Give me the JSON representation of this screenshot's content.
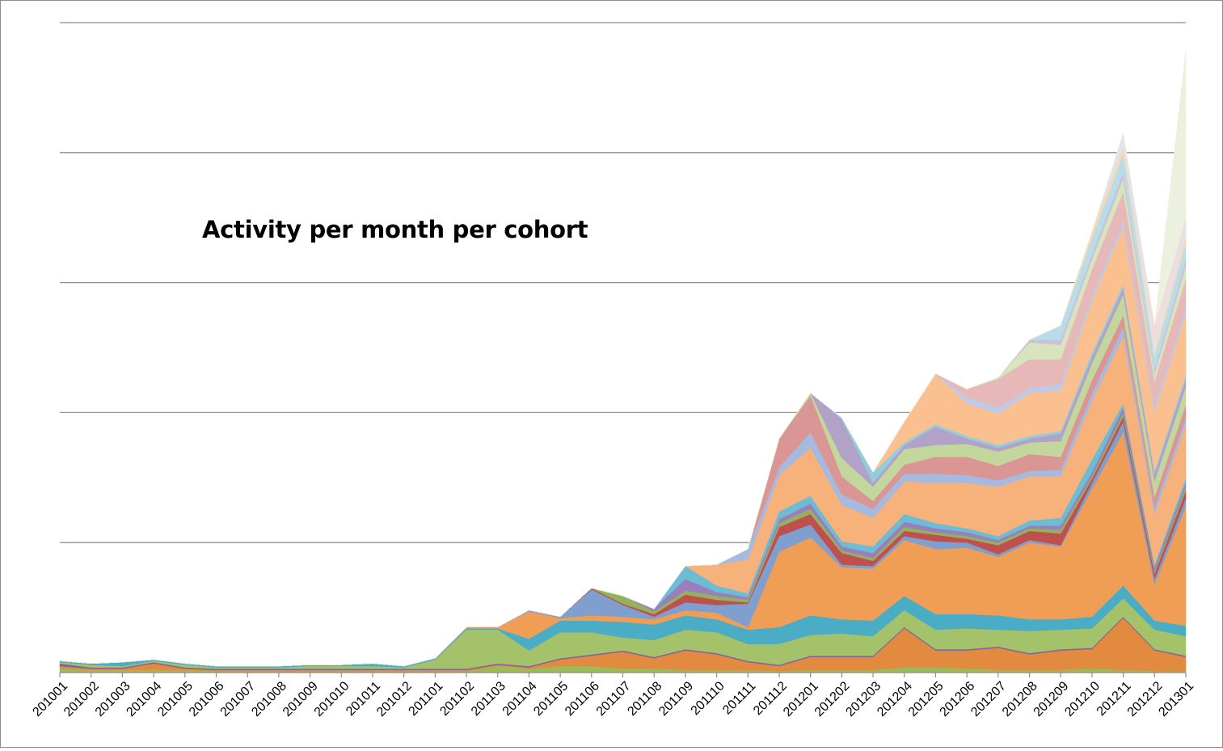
{
  "chart_data": {
    "type": "area",
    "stacked": true,
    "title": "Activity per month per cohort",
    "xlabel": "",
    "ylabel": "",
    "grid": true,
    "legend": "none",
    "y_tick_labels_shown": false,
    "ylim": [
      0,
      5
    ],
    "categories": [
      "201001",
      "201002",
      "201003",
      "201004",
      "201005",
      "201006",
      "201007",
      "201008",
      "201009",
      "201010",
      "201011",
      "201012",
      "201101",
      "201102",
      "201103",
      "201104",
      "201105",
      "201106",
      "201107",
      "201108",
      "201109",
      "201110",
      "201111",
      "201112",
      "201201",
      "201202",
      "201203",
      "201204",
      "201205",
      "201206",
      "201207",
      "201208",
      "201209",
      "201210",
      "201211",
      "201212",
      "201301"
    ],
    "series": [
      {
        "color": "#9bbb59",
        "values": [
          0.03,
          0.02,
          0.02,
          0.02,
          0.02,
          0.01,
          0.01,
          0.01,
          0.01,
          0.01,
          0.01,
          0.01,
          0.01,
          0.01,
          0.05,
          0.03,
          0.05,
          0.05,
          0.03,
          0.03,
          0.02,
          0.02,
          0.02,
          0.01,
          0.02,
          0.02,
          0.02,
          0.04,
          0.04,
          0.03,
          0.02,
          0.02,
          0.02,
          0.03,
          0.02,
          0.01,
          0.01
        ]
      },
      {
        "color": "#e28b40",
        "values": [
          0.02,
          0.01,
          0.01,
          0.05,
          0.01,
          0.01,
          0.01,
          0.01,
          0.01,
          0.01,
          0.01,
          0.01,
          0.01,
          0.01,
          0.01,
          0.01,
          0.05,
          0.08,
          0.13,
          0.08,
          0.15,
          0.12,
          0.06,
          0.04,
          0.1,
          0.1,
          0.1,
          0.3,
          0.13,
          0.14,
          0.17,
          0.12,
          0.15,
          0.15,
          0.4,
          0.16,
          0.11
        ]
      },
      {
        "color": "#8064a2",
        "values": [
          0.02,
          0.01,
          0.01,
          0.01,
          0.01,
          0.01,
          0.01,
          0.01,
          0.01,
          0.01,
          0.01,
          0.01,
          0.01,
          0.01,
          0.01,
          0.01,
          0.01,
          0.01,
          0.01,
          0.01,
          0.01,
          0.01,
          0.01,
          0.01,
          0.01,
          0.01,
          0.01,
          0.01,
          0.01,
          0.01,
          0.01,
          0.01,
          0.01,
          0.01,
          0.01,
          0.01,
          0.01
        ]
      },
      {
        "color": "#a4c26a",
        "values": [
          0.01,
          0.02,
          0.01,
          0.01,
          0.02,
          0.01,
          0.01,
          0.01,
          0.02,
          0.02,
          0.02,
          0.01,
          0.07,
          0.3,
          0.26,
          0.12,
          0.2,
          0.17,
          0.1,
          0.13,
          0.15,
          0.16,
          0.13,
          0.16,
          0.16,
          0.17,
          0.15,
          0.13,
          0.15,
          0.16,
          0.13,
          0.17,
          0.15,
          0.15,
          0.14,
          0.15,
          0.15
        ]
      },
      {
        "color": "#4bacc6",
        "values": [
          0.01,
          0.01,
          0.03,
          0.01,
          0.01,
          0.01,
          0.01,
          0.01,
          0.01,
          0.01,
          0.02,
          0.01,
          0.01,
          0.01,
          0.01,
          0.09,
          0.09,
          0.09,
          0.12,
          0.12,
          0.11,
          0.1,
          0.11,
          0.13,
          0.15,
          0.11,
          0.12,
          0.11,
          0.12,
          0.11,
          0.11,
          0.09,
          0.08,
          0.09,
          0.1,
          0.07,
          0.08
        ]
      },
      {
        "color": "#f09e56",
        "values": [
          0,
          0,
          0,
          0,
          0,
          0,
          0,
          0,
          0,
          0,
          0,
          0,
          0,
          0.01,
          0.01,
          0.21,
          0.02,
          0.04,
          0.04,
          0.04,
          0.04,
          0.05,
          0.02,
          0.58,
          0.6,
          0.4,
          0.4,
          0.43,
          0.5,
          0.51,
          0.45,
          0.59,
          0.56,
          0.98,
          1.18,
          0.28,
          0.92
        ]
      },
      {
        "color": "#7f9fcf",
        "values": [
          0,
          0,
          0,
          0,
          0,
          0,
          0,
          0,
          0,
          0,
          0,
          0,
          0,
          0,
          0,
          0.01,
          0.01,
          0.2,
          0.09,
          0.02,
          0.06,
          0.06,
          0.18,
          0.12,
          0.1,
          0.02,
          0.02,
          0.03,
          0.06,
          0.04,
          0.02,
          0.02,
          0.01,
          0.05,
          0.08,
          0.04,
          0.06
        ]
      },
      {
        "color": "#c0504d",
        "values": [
          0,
          0,
          0,
          0,
          0,
          0,
          0,
          0,
          0,
          0,
          0,
          0,
          0,
          0,
          0,
          0,
          0,
          0.01,
          0.01,
          0.02,
          0.06,
          0.04,
          0.01,
          0.07,
          0.08,
          0.09,
          0.04,
          0.04,
          0.05,
          0.03,
          0.07,
          0.07,
          0.09,
          0.03,
          0.04,
          0.04,
          0.06
        ]
      },
      {
        "color": "#93b25c",
        "values": [
          0,
          0,
          0,
          0,
          0,
          0,
          0,
          0,
          0,
          0,
          0,
          0,
          0,
          0,
          0,
          0,
          0,
          0,
          0.06,
          0.02,
          0.03,
          0.03,
          0.02,
          0.03,
          0.04,
          0.02,
          0.02,
          0.03,
          0.02,
          0.02,
          0.02,
          0.02,
          0.03,
          0.02,
          0.03,
          0.02,
          0.03
        ]
      },
      {
        "color": "#9b7fbc",
        "values": [
          0,
          0,
          0,
          0,
          0,
          0,
          0,
          0,
          0,
          0,
          0,
          0,
          0,
          0,
          0,
          0,
          0,
          0,
          0,
          0.02,
          0.09,
          0.03,
          0.02,
          0.03,
          0.04,
          0.03,
          0.04,
          0.04,
          0.03,
          0.03,
          0.02,
          0.02,
          0.03,
          0.03,
          0.04,
          0.03,
          0.03
        ]
      },
      {
        "color": "#6cbcd4",
        "values": [
          0,
          0,
          0,
          0,
          0,
          0,
          0,
          0,
          0,
          0,
          0,
          0,
          0,
          0,
          0,
          0,
          0,
          0,
          0,
          0,
          0.1,
          0.05,
          0.03,
          0.06,
          0.06,
          0.04,
          0.05,
          0.06,
          0.04,
          0.03,
          0.03,
          0.04,
          0.06,
          0.1,
          0.03,
          0.02,
          0.04
        ]
      },
      {
        "color": "#f7b27c",
        "values": [
          0,
          0,
          0,
          0,
          0,
          0,
          0,
          0,
          0,
          0,
          0,
          0,
          0,
          0,
          0,
          0,
          0,
          0,
          0,
          0,
          0,
          0.16,
          0.26,
          0.28,
          0.37,
          0.28,
          0.22,
          0.25,
          0.31,
          0.35,
          0.38,
          0.34,
          0.32,
          0.45,
          0.52,
          0.39,
          0.41
        ]
      },
      {
        "color": "#a6b9df",
        "values": [
          0,
          0,
          0,
          0,
          0,
          0,
          0,
          0,
          0,
          0,
          0,
          0,
          0,
          0,
          0,
          0,
          0,
          0,
          0,
          0,
          0,
          0,
          0.08,
          0.06,
          0.12,
          0.08,
          0.07,
          0.06,
          0.07,
          0.06,
          0.05,
          0.04,
          0.05,
          0.06,
          0.07,
          0.05,
          0.05
        ]
      },
      {
        "color": "#d99694",
        "values": [
          0,
          0,
          0,
          0,
          0,
          0,
          0,
          0,
          0,
          0,
          0,
          0,
          0,
          0,
          0,
          0,
          0,
          0,
          0,
          0,
          0,
          0,
          0,
          0.22,
          0.28,
          0.14,
          0.06,
          0.07,
          0.13,
          0.14,
          0.11,
          0.13,
          0.1,
          0.1,
          0.09,
          0.08,
          0.1
        ]
      },
      {
        "color": "#c3d69b",
        "values": [
          0,
          0,
          0,
          0,
          0,
          0,
          0,
          0,
          0,
          0,
          0,
          0,
          0,
          0,
          0,
          0,
          0,
          0,
          0,
          0,
          0,
          0,
          0,
          0,
          0.02,
          0.14,
          0.11,
          0.12,
          0.09,
          0.1,
          0.11,
          0.09,
          0.12,
          0.13,
          0.16,
          0.12,
          0.14
        ]
      },
      {
        "color": "#b2a2c7",
        "values": [
          0,
          0,
          0,
          0,
          0,
          0,
          0,
          0,
          0,
          0,
          0,
          0,
          0,
          0,
          0,
          0,
          0,
          0,
          0,
          0,
          0,
          0,
          0,
          0,
          0,
          0.3,
          0.03,
          0.03,
          0.14,
          0.04,
          0.03,
          0.03,
          0.06,
          0.05,
          0.05,
          0.06,
          0.06
        ]
      },
      {
        "color": "#92cddc",
        "values": [
          0,
          0,
          0,
          0,
          0,
          0,
          0,
          0,
          0,
          0,
          0,
          0,
          0,
          0,
          0,
          0,
          0,
          0,
          0,
          0,
          0,
          0,
          0,
          0,
          0,
          0.01,
          0.08,
          0.02,
          0.02,
          0.02,
          0.02,
          0.02,
          0.02,
          0.03,
          0.03,
          0.02,
          0.03
        ]
      },
      {
        "color": "#fac090",
        "values": [
          0,
          0,
          0,
          0,
          0,
          0,
          0,
          0,
          0,
          0,
          0,
          0,
          0,
          0,
          0,
          0,
          0,
          0,
          0,
          0,
          0,
          0,
          0,
          0,
          0,
          0,
          0,
          0.16,
          0.39,
          0.25,
          0.24,
          0.33,
          0.31,
          0.4,
          0.44,
          0.45,
          0.47
        ]
      },
      {
        "color": "#c0c9e5",
        "values": [
          0,
          0,
          0,
          0,
          0,
          0,
          0,
          0,
          0,
          0,
          0,
          0,
          0,
          0,
          0,
          0,
          0,
          0,
          0,
          0,
          0,
          0,
          0,
          0,
          0,
          0,
          0,
          0,
          0,
          0.05,
          0.05,
          0.04,
          0.05,
          0.04,
          0.05,
          0.04,
          0.05
        ]
      },
      {
        "color": "#e6b8b7",
        "values": [
          0,
          0,
          0,
          0,
          0,
          0,
          0,
          0,
          0,
          0,
          0,
          0,
          0,
          0,
          0,
          0,
          0,
          0,
          0,
          0,
          0,
          0,
          0,
          0,
          0,
          0,
          0,
          0,
          0,
          0.06,
          0.22,
          0.22,
          0.19,
          0.2,
          0.22,
          0.2,
          0.22
        ]
      },
      {
        "color": "#d7e4bd",
        "values": [
          0,
          0,
          0,
          0,
          0,
          0,
          0,
          0,
          0,
          0,
          0,
          0,
          0,
          0,
          0,
          0,
          0,
          0,
          0,
          0,
          0,
          0,
          0,
          0,
          0,
          0,
          0,
          0,
          0,
          0,
          0.01,
          0.13,
          0.11,
          0.08,
          0.1,
          0.06,
          0.1
        ]
      },
      {
        "color": "#ccc1da",
        "values": [
          0,
          0,
          0,
          0,
          0,
          0,
          0,
          0,
          0,
          0,
          0,
          0,
          0,
          0,
          0,
          0,
          0,
          0,
          0,
          0,
          0,
          0,
          0,
          0,
          0,
          0,
          0,
          0,
          0,
          0,
          0,
          0.02,
          0.04,
          0.04,
          0.05,
          0.03,
          0.05
        ]
      },
      {
        "color": "#b7dee8",
        "values": [
          0,
          0,
          0,
          0,
          0,
          0,
          0,
          0,
          0,
          0,
          0,
          0,
          0,
          0,
          0,
          0,
          0,
          0,
          0,
          0,
          0,
          0,
          0,
          0,
          0,
          0,
          0,
          0,
          0,
          0,
          0,
          0,
          0.11,
          0.12,
          0.14,
          0.1,
          0.12
        ]
      },
      {
        "color": "#fcd5b4",
        "values": [
          0,
          0,
          0,
          0,
          0,
          0,
          0,
          0,
          0,
          0,
          0,
          0,
          0,
          0,
          0,
          0,
          0,
          0,
          0,
          0,
          0,
          0,
          0,
          0,
          0,
          0,
          0,
          0,
          0,
          0,
          0,
          0,
          0,
          0.05,
          0.06,
          0.04,
          0.06
        ]
      },
      {
        "color": "#dbe5f1",
        "values": [
          0,
          0,
          0,
          0,
          0,
          0,
          0,
          0,
          0,
          0,
          0,
          0,
          0,
          0,
          0,
          0,
          0,
          0,
          0,
          0,
          0,
          0,
          0,
          0,
          0,
          0,
          0,
          0,
          0,
          0,
          0,
          0,
          0,
          0,
          0.1,
          0.06,
          0.08
        ]
      },
      {
        "color": "#f2dcdb",
        "values": [
          0,
          0,
          0,
          0,
          0,
          0,
          0,
          0,
          0,
          0,
          0,
          0,
          0,
          0,
          0,
          0,
          0,
          0,
          0,
          0,
          0,
          0,
          0,
          0,
          0,
          0,
          0,
          0,
          0,
          0,
          0,
          0,
          0,
          0,
          0,
          0.14,
          0.06
        ]
      },
      {
        "color": "#ebf1de",
        "values": [
          0,
          0,
          0,
          0,
          0,
          0,
          0,
          0,
          0,
          0,
          0,
          0,
          0,
          0,
          0,
          0,
          0,
          0,
          0,
          0,
          0,
          0,
          0,
          0,
          0,
          0,
          0,
          0,
          0,
          0,
          0,
          0,
          0,
          0,
          0,
          0,
          1.29
        ]
      }
    ]
  }
}
